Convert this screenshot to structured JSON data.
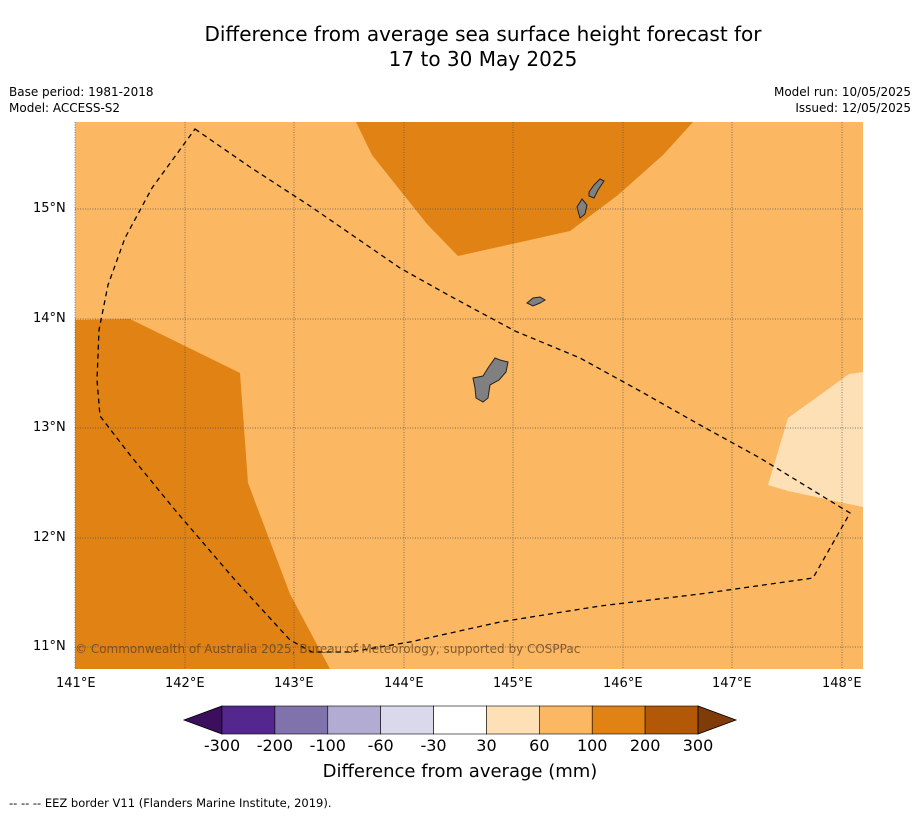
{
  "title_line1": "Difference from average sea surface height forecast for",
  "title_line2": "17 to 30 May 2025",
  "base_period": "Base period: 1981-2018",
  "model": "Model: ACCESS-S2",
  "model_run": "Model run: 10/05/2025",
  "issued": "Issued: 12/05/2025",
  "copyright": "© Commonwealth of Australia 2025, Bureau of Meteorology, supported by COSPPac",
  "colorbar": {
    "title": "Difference from average (mm)",
    "labels": [
      "-300",
      "-200",
      "-100",
      "-60",
      "-30",
      "30",
      "60",
      "100",
      "200",
      "300"
    ],
    "colors": [
      "#3b0f5e",
      "#54278f",
      "#8073ac",
      "#b2abd2",
      "#d8daeb",
      "#ffffff",
      "#fee0b6",
      "#fbb761",
      "#e08214",
      "#b35806",
      "#7f3b08"
    ]
  },
  "footnote": "--  --  -- EEZ border V11 (Flanders Marine Institute, 2019).",
  "map": {
    "lat_labels": [
      "15°N",
      "14°N",
      "13°N",
      "12°N",
      "11°N"
    ],
    "lon_labels": [
      "141°E",
      "142°E",
      "143°E",
      "144°E",
      "145°E",
      "146°E",
      "147°E",
      "148°E"
    ],
    "background_category": "60 to 100",
    "regions": [
      {
        "name": "northern-high-anomaly",
        "category": "100 to 200",
        "color": "#e08214"
      },
      {
        "name": "western-high-anomaly",
        "category": "100 to 200",
        "color": "#e08214"
      },
      {
        "name": "eastern-lower-anomaly",
        "category": "30 to 60",
        "color": "#fee0b6"
      }
    ],
    "land_color": "#808080",
    "eez_style": "dashed black"
  }
}
